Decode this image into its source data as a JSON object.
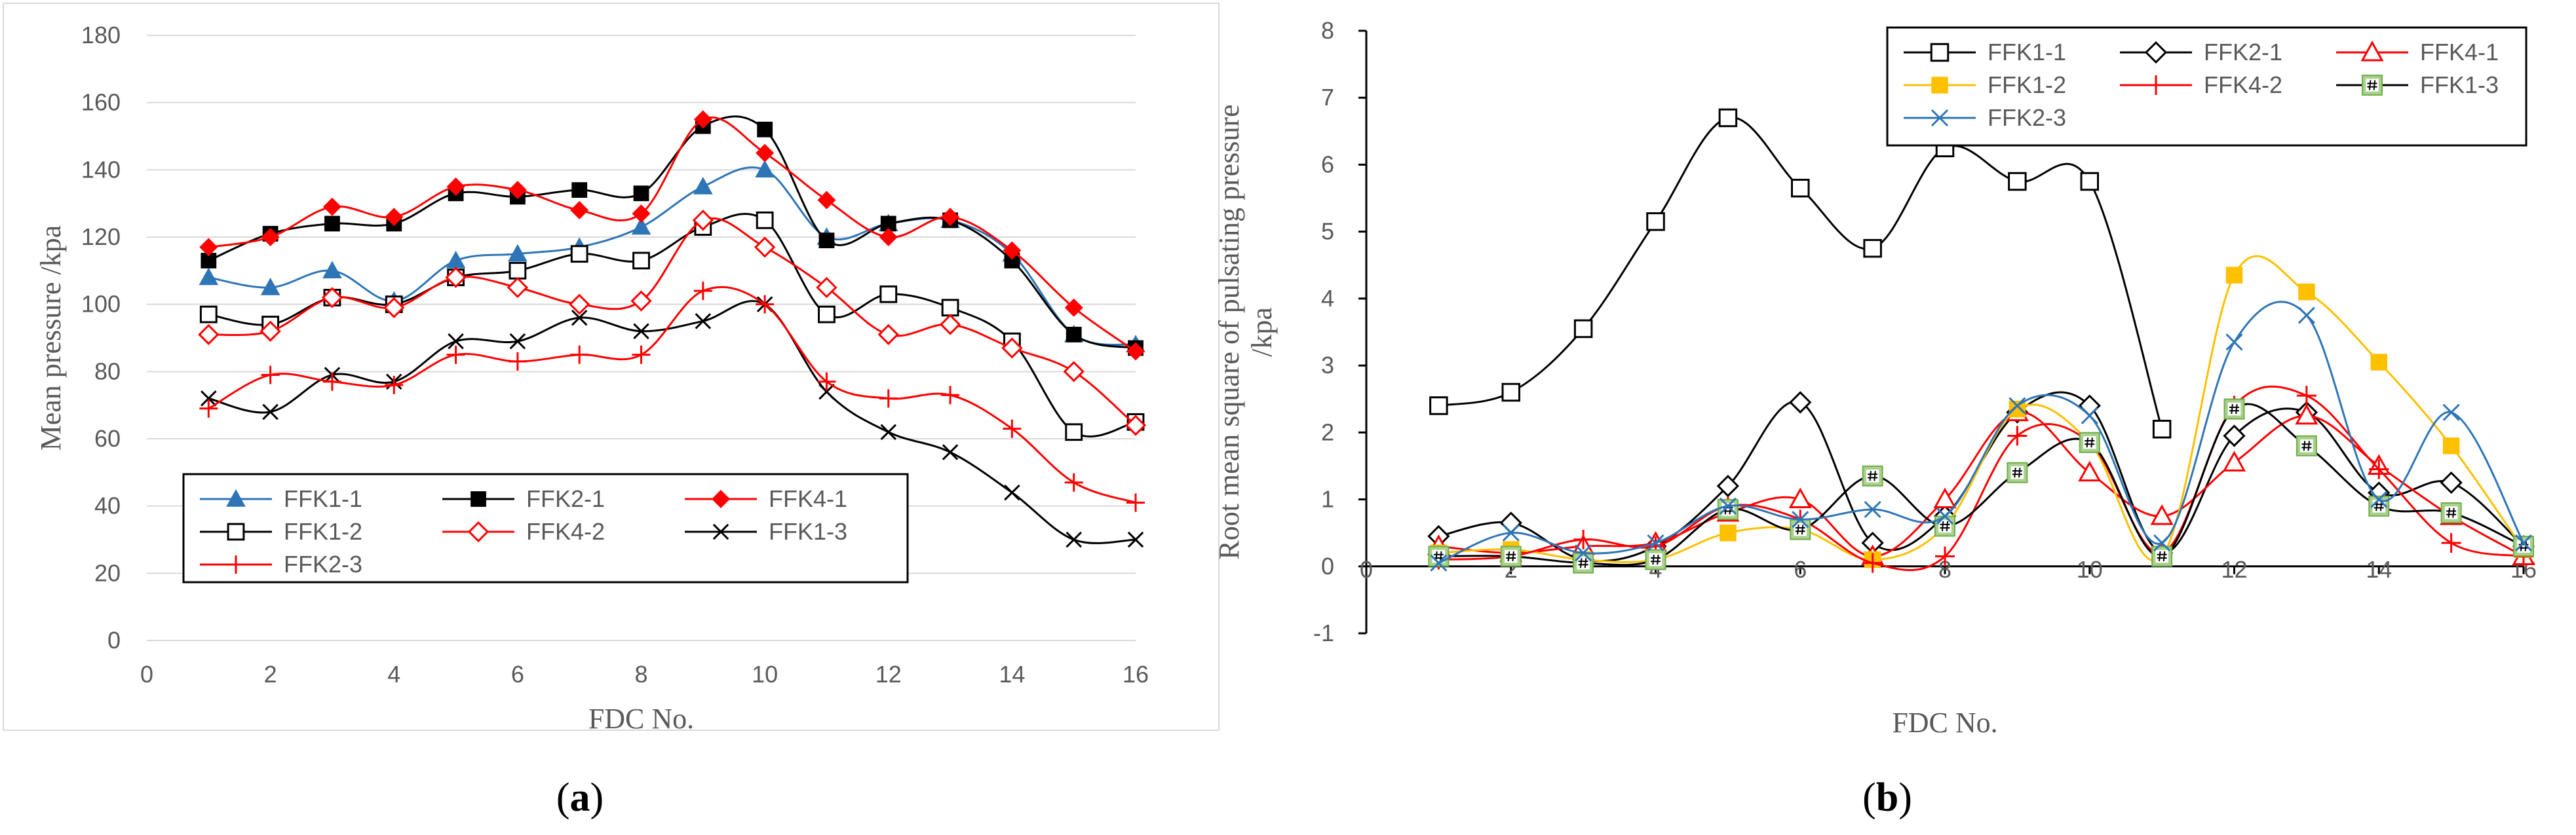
{
  "chart_data": [
    {
      "type": "line",
      "panel_label": "(a)",
      "panel_letter": "a",
      "xlabel": "FDC No.",
      "ylabel": "Mean pressure /kpa",
      "xlim": [
        0,
        16
      ],
      "ylim": [
        0,
        180
      ],
      "xticks": [
        0,
        2,
        4,
        6,
        8,
        10,
        12,
        14,
        16
      ],
      "yticks": [
        0,
        20,
        40,
        60,
        80,
        100,
        120,
        140,
        160,
        180
      ],
      "grid": true,
      "legend_position": "bottom",
      "x": [
        1,
        2,
        3,
        4,
        5,
        6,
        7,
        8,
        9,
        10,
        11,
        12,
        13,
        14,
        15,
        16
      ],
      "series": [
        {
          "name": "FFK1-1",
          "color": "#2E75B6",
          "marker": "triangle",
          "values": [
            108,
            105,
            110,
            101,
            113,
            115,
            117,
            123,
            135,
            140,
            120,
            124,
            125,
            115,
            91,
            88
          ]
        },
        {
          "name": "FFK2-1",
          "color": "#000000",
          "marker": "square-filled",
          "values": [
            113,
            121,
            124,
            124,
            133,
            132,
            134,
            133,
            153,
            152,
            119,
            124,
            125,
            113,
            91,
            87
          ]
        },
        {
          "name": "FFK4-1",
          "color": "#FF0000",
          "marker": "diamond-filled",
          "values": [
            117,
            120,
            129,
            126,
            135,
            134,
            128,
            127,
            155,
            145,
            131,
            120,
            126,
            116,
            99,
            86
          ]
        },
        {
          "name": "FFK1-2",
          "color": "#000000",
          "marker": "square-open",
          "values": [
            97,
            94,
            102,
            100,
            108,
            110,
            115,
            113,
            123,
            125,
            97,
            103,
            99,
            89,
            62,
            65
          ]
        },
        {
          "name": "FFK4-2",
          "color": "#FF0000",
          "marker": "diamond-open",
          "values": [
            91,
            92,
            102,
            99,
            108,
            105,
            100,
            101,
            125,
            117,
            105,
            91,
            94,
            87,
            80,
            64
          ]
        },
        {
          "name": "FFK1-3",
          "color": "#000000",
          "marker": "x",
          "values": [
            72,
            68,
            79,
            77,
            89,
            89,
            96,
            92,
            95,
            100,
            74,
            62,
            56,
            44,
            30,
            30
          ]
        },
        {
          "name": "FFK2-3",
          "color": "#FF0000",
          "marker": "plus",
          "values": [
            69,
            79,
            77,
            76,
            85,
            83,
            85,
            85,
            104,
            100,
            77,
            72,
            73,
            63,
            47,
            41
          ]
        }
      ]
    },
    {
      "type": "line",
      "panel_label": "(b)",
      "panel_letter": "b",
      "xlabel": "FDC No.",
      "ylabel_lines": [
        "Root mean square of pulsating pressure",
        "/kpa"
      ],
      "xlim": [
        0,
        16
      ],
      "ylim": [
        -1,
        8
      ],
      "xticks": [
        0,
        2,
        4,
        6,
        8,
        10,
        12,
        14,
        16
      ],
      "yticks": [
        -1,
        0,
        1,
        2,
        3,
        4,
        5,
        6,
        7,
        8
      ],
      "grid": false,
      "legend_position": "top-right",
      "x": [
        1,
        2,
        3,
        4,
        5,
        6,
        7,
        8,
        9,
        10,
        11,
        12,
        13,
        14,
        15,
        16
      ],
      "series": [
        {
          "name": "FFK1-1",
          "color": "#000000",
          "marker": "square-open",
          "values": [
            2.4,
            2.6,
            3.55,
            5.15,
            6.7,
            5.65,
            4.75,
            6.25,
            5.75,
            5.75,
            2.05,
            null,
            null,
            null,
            null,
            null
          ]
        },
        {
          "name": "FFK2-1",
          "color": "#000000",
          "marker": "diamond-open",
          "values": [
            0.45,
            0.65,
            0.1,
            0.3,
            1.2,
            2.45,
            0.35,
            0.75,
            2.3,
            2.4,
            0.2,
            1.95,
            2.3,
            1.1,
            1.25,
            0.3
          ]
        },
        {
          "name": "FFK4-1",
          "color": "#FF0000",
          "marker": "triangle-open",
          "values": [
            0.3,
            0.2,
            0.3,
            0.35,
            0.8,
            1.0,
            0.15,
            1.0,
            2.3,
            1.4,
            0.75,
            1.55,
            2.25,
            1.5,
            0.75,
            0.15
          ]
        },
        {
          "name": "FFK1-2",
          "color": "#FFC000",
          "marker": "square-filled",
          "values": [
            0.2,
            0.25,
            0.1,
            0.1,
            0.5,
            0.55,
            0.1,
            0.6,
            2.35,
            1.85,
            0.15,
            4.35,
            4.1,
            3.05,
            1.8,
            0.25
          ]
        },
        {
          "name": "FFK4-2",
          "color": "#FF0000",
          "marker": "plus",
          "values": [
            0.1,
            0.15,
            0.4,
            0.3,
            0.9,
            0.7,
            0.05,
            0.15,
            1.95,
            1.85,
            0.2,
            2.4,
            2.55,
            1.45,
            0.35,
            0.15
          ]
        },
        {
          "name": "FFK1-3",
          "color": "#000000",
          "marker": "hash",
          "values": [
            0.15,
            0.15,
            0.05,
            0.1,
            0.85,
            0.55,
            1.35,
            0.6,
            1.4,
            1.85,
            0.15,
            2.35,
            1.8,
            0.9,
            0.8,
            0.3
          ]
        },
        {
          "name": "FFK2-3",
          "color": "#2E75B6",
          "marker": "x",
          "values": [
            0.05,
            0.5,
            0.2,
            0.35,
            0.9,
            0.7,
            0.85,
            0.75,
            2.4,
            2.25,
            0.35,
            3.35,
            3.75,
            1.0,
            2.3,
            0.35
          ]
        }
      ]
    }
  ]
}
